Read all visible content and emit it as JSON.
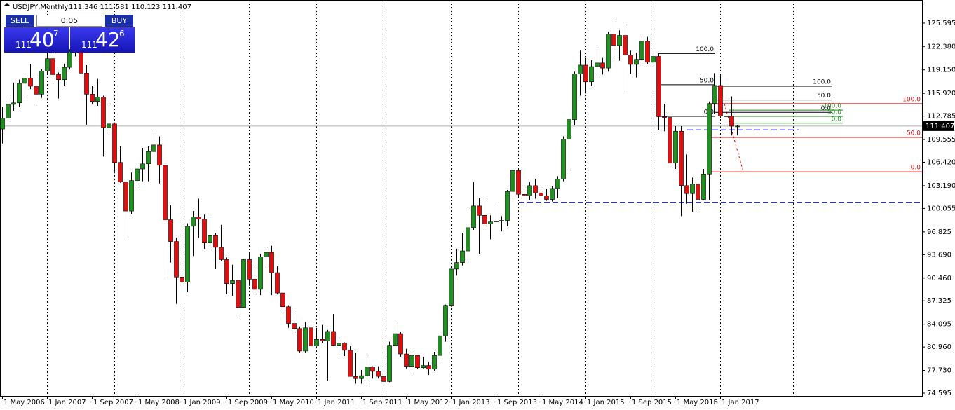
{
  "chart_data": {
    "type": "candlestick",
    "title": "USDJPY,Monthly",
    "subtitle": "111.346 111.581 110.123 111.407",
    "up_color": "#1f8f1f",
    "down_color": "#e01010",
    "ylim": [
      74.21,
      128.78
    ],
    "yticks": [
      {
        "value": 125.595,
        "label": "125.595"
      },
      {
        "value": 122.38,
        "label": "122.380"
      },
      {
        "value": 119.15,
        "label": "119.150"
      },
      {
        "value": 115.92,
        "label": "115.920"
      },
      112.785,
      109.555,
      {
        "value": 106.42,
        "label": "106.420"
      },
      {
        "value": 103.19,
        "label": "103.190"
      },
      100.055,
      96.825,
      {
        "value": 93.69,
        "label": "93.690"
      },
      {
        "value": 90.46,
        "label": "90.460"
      },
      87.325,
      84.095,
      {
        "value": 80.96,
        "label": "80.960"
      },
      {
        "value": 77.73,
        "label": "77.730"
      },
      74.595
    ],
    "current_price": 111.407,
    "categories": [
      "1 May 2006",
      null,
      null,
      null,
      null,
      null,
      null,
      null,
      "1 Jan 2007",
      null,
      null,
      null,
      null,
      null,
      null,
      null,
      "1 Sep 2007",
      null,
      null,
      null,
      null,
      null,
      null,
      null,
      "1 May 2008",
      null,
      null,
      null,
      null,
      null,
      null,
      null,
      "1 Jan 2009",
      null,
      null,
      null,
      null,
      null,
      null,
      null,
      "1 Sep 2009",
      null,
      null,
      null,
      null,
      null,
      null,
      null,
      "1 May 2010",
      null,
      null,
      null,
      null,
      null,
      null,
      null,
      "1 Jan 2011",
      null,
      null,
      null,
      null,
      null,
      null,
      null,
      "1 Sep 2011",
      null,
      null,
      null,
      null,
      null,
      null,
      null,
      "1 May 2012",
      null,
      null,
      null,
      null,
      null,
      null,
      null,
      "1 Jan 2013",
      null,
      null,
      null,
      null,
      null,
      null,
      null,
      "1 Sep 2013",
      null,
      null,
      null,
      null,
      null,
      null,
      null,
      "1 May 2014",
      null,
      null,
      null,
      null,
      null,
      null,
      null,
      "1 Jan 2015",
      null,
      null,
      null,
      null,
      null,
      null,
      null,
      "1 Sep 2015",
      null,
      null,
      null,
      null,
      null,
      null,
      null,
      "1 May 2016",
      null,
      null,
      null,
      null,
      null,
      null,
      null,
      "1 Jan 2017",
      null,
      null,
      null
    ],
    "candles": [
      [
        111.0,
        114.0,
        109.0,
        112.5
      ],
      [
        112.5,
        115.5,
        111.8,
        114.4
      ],
      [
        114.4,
        117.4,
        113.5,
        114.6
      ],
      [
        114.6,
        117.8,
        114.0,
        117.3
      ],
      [
        117.3,
        118.4,
        115.5,
        118.0
      ],
      [
        118.0,
        119.9,
        116.5,
        116.9
      ],
      [
        116.9,
        118.2,
        114.4,
        115.8
      ],
      [
        115.8,
        119.3,
        115.3,
        119.0
      ],
      [
        119.0,
        122.2,
        118.5,
        120.7
      ],
      [
        120.7,
        122.2,
        117.8,
        118.5
      ],
      [
        118.5,
        118.8,
        115.2,
        117.8
      ],
      [
        117.8,
        120.0,
        117.0,
        119.5
      ],
      [
        119.5,
        122.0,
        119.2,
        121.7
      ],
      [
        121.7,
        124.1,
        121.0,
        123.2
      ],
      [
        123.2,
        123.5,
        118.3,
        118.7
      ],
      [
        118.7,
        119.8,
        111.6,
        115.8
      ],
      [
        115.8,
        117.0,
        114.5,
        114.8
      ],
      [
        114.8,
        117.9,
        114.2,
        115.4
      ],
      [
        115.4,
        115.6,
        107.2,
        111.2
      ],
      [
        111.2,
        114.6,
        110.5,
        111.7
      ],
      [
        111.7,
        111.9,
        104.9,
        106.4
      ],
      [
        106.4,
        108.6,
        103.6,
        103.7
      ],
      [
        103.7,
        103.9,
        95.7,
        99.7
      ],
      [
        99.7,
        105.0,
        99.3,
        103.9
      ],
      [
        103.9,
        105.8,
        102.7,
        105.5
      ],
      [
        105.5,
        108.4,
        103.8,
        106.2
      ],
      [
        106.2,
        108.6,
        103.8,
        107.9
      ],
      [
        107.9,
        110.7,
        107.2,
        108.8
      ],
      [
        108.8,
        110.0,
        103.5,
        106.0
      ],
      [
        106.0,
        106.3,
        90.9,
        98.5
      ],
      [
        98.5,
        100.5,
        92.6,
        95.5
      ],
      [
        95.5,
        96.0,
        86.9,
        90.6
      ],
      [
        90.6,
        91.2,
        87.1,
        89.9
      ],
      [
        89.9,
        98.0,
        88.5,
        97.6
      ],
      [
        97.6,
        99.7,
        93.5,
        98.9
      ],
      [
        98.9,
        101.4,
        96.0,
        98.6
      ],
      [
        98.6,
        99.2,
        94.5,
        95.3
      ],
      [
        95.3,
        98.9,
        94.4,
        96.3
      ],
      [
        96.3,
        96.7,
        91.7,
        94.7
      ],
      [
        94.7,
        97.8,
        92.8,
        93.0
      ],
      [
        93.0,
        93.3,
        88.2,
        89.7
      ],
      [
        89.7,
        92.3,
        88.0,
        90.1
      ],
      [
        90.1,
        90.3,
        84.8,
        86.4
      ],
      [
        86.4,
        93.1,
        86.3,
        93.0
      ],
      [
        93.0,
        93.8,
        89.4,
        90.3
      ],
      [
        90.3,
        91.8,
        88.1,
        88.9
      ],
      [
        88.9,
        93.8,
        88.1,
        93.4
      ],
      [
        93.4,
        94.7,
        92.1,
        94.0
      ],
      [
        94.0,
        94.9,
        88.1,
        91.2
      ],
      [
        91.2,
        92.1,
        88.2,
        88.4
      ],
      [
        88.4,
        88.6,
        86.2,
        86.5
      ],
      [
        86.5,
        86.7,
        83.6,
        84.2
      ],
      [
        84.2,
        85.9,
        82.9,
        83.5
      ],
      [
        83.5,
        83.8,
        80.2,
        80.4
      ],
      [
        80.4,
        84.4,
        80.2,
        83.6
      ],
      [
        83.6,
        84.5,
        80.9,
        81.1
      ],
      [
        81.1,
        83.6,
        81.0,
        82.0
      ],
      [
        82.0,
        84.0,
        81.5,
        81.8
      ],
      [
        81.8,
        83.3,
        76.3,
        83.1
      ],
      [
        83.1,
        85.5,
        81.2,
        81.2
      ],
      [
        81.2,
        82.0,
        79.6,
        81.5
      ],
      [
        81.5,
        81.6,
        79.7,
        80.5
      ],
      [
        80.5,
        81.1,
        76.9,
        76.9
      ],
      [
        76.9,
        80.2,
        75.9,
        76.6
      ],
      [
        76.6,
        77.8,
        75.9,
        77.0
      ],
      [
        77.0,
        79.5,
        75.6,
        78.2
      ],
      [
        78.2,
        78.3,
        76.6,
        77.6
      ],
      [
        77.6,
        78.3,
        76.6,
        76.9
      ],
      [
        76.9,
        77.3,
        75.9,
        76.2
      ],
      [
        76.2,
        81.7,
        76.1,
        81.2
      ],
      [
        81.2,
        84.2,
        80.9,
        82.8
      ],
      [
        82.8,
        83.0,
        79.6,
        80.0
      ],
      [
        80.0,
        80.7,
        78.0,
        78.3
      ],
      [
        78.3,
        80.6,
        77.6,
        79.8
      ],
      [
        79.8,
        79.9,
        77.9,
        78.1
      ],
      [
        78.1,
        79.6,
        78.0,
        78.4
      ],
      [
        78.4,
        78.9,
        77.1,
        77.9
      ],
      [
        77.9,
        80.3,
        77.7,
        79.8
      ],
      [
        79.8,
        82.8,
        79.1,
        82.5
      ],
      [
        82.5,
        86.8,
        81.7,
        86.7
      ],
      [
        86.7,
        91.7,
        86.5,
        91.7
      ],
      [
        91.7,
        94.5,
        90.8,
        92.6
      ],
      [
        92.6,
        96.7,
        92.2,
        94.2
      ],
      [
        94.2,
        99.9,
        92.6,
        97.4
      ],
      [
        97.4,
        103.7,
        97.1,
        100.4
      ],
      [
        100.4,
        101.5,
        93.8,
        99.1
      ],
      [
        99.1,
        101.5,
        97.5,
        97.9
      ],
      [
        97.9,
        99.1,
        95.8,
        98.2
      ],
      [
        98.2,
        100.6,
        97.1,
        98.3
      ],
      [
        98.3,
        99.0,
        96.9,
        98.4
      ],
      [
        98.4,
        102.6,
        97.6,
        102.4
      ],
      [
        102.4,
        105.4,
        101.6,
        105.3
      ],
      [
        105.3,
        105.4,
        101.8,
        102.0
      ],
      [
        102.0,
        102.8,
        100.8,
        101.8
      ],
      [
        101.8,
        103.7,
        101.2,
        103.2
      ],
      [
        103.2,
        104.1,
        101.4,
        102.2
      ],
      [
        102.2,
        103.0,
        100.8,
        101.8
      ],
      [
        101.8,
        102.8,
        101.1,
        101.3
      ],
      [
        101.3,
        103.1,
        101.0,
        102.8
      ],
      [
        102.8,
        104.5,
        101.5,
        104.1
      ],
      [
        104.1,
        110.0,
        103.8,
        109.6
      ],
      [
        109.6,
        112.5,
        105.2,
        112.3
      ],
      [
        112.3,
        118.9,
        111.5,
        118.6
      ],
      [
        118.6,
        121.8,
        115.6,
        119.8
      ],
      [
        119.8,
        120.8,
        115.9,
        117.5
      ],
      [
        117.5,
        120.5,
        116.9,
        119.6
      ],
      [
        119.6,
        122.0,
        118.3,
        120.1
      ],
      [
        120.1,
        120.8,
        118.5,
        119.4
      ],
      [
        119.4,
        124.4,
        118.9,
        124.1
      ],
      [
        124.1,
        125.9,
        120.4,
        122.5
      ],
      [
        122.5,
        124.6,
        120.4,
        123.9
      ],
      [
        123.9,
        125.3,
        116.1,
        121.2
      ],
      [
        121.2,
        121.8,
        118.6,
        119.9
      ],
      [
        119.9,
        121.5,
        118.1,
        120.6
      ],
      [
        120.6,
        123.8,
        120.2,
        123.1
      ],
      [
        123.1,
        123.7,
        119.9,
        120.2
      ],
      [
        120.2,
        121.7,
        115.9,
        121.0
      ],
      [
        121.0,
        121.5,
        110.9,
        112.7
      ],
      [
        112.7,
        114.5,
        110.7,
        112.6
      ],
      [
        112.6,
        112.7,
        105.6,
        106.3
      ],
      [
        106.3,
        111.4,
        105.5,
        110.7
      ],
      [
        110.7,
        111.4,
        99.0,
        103.2
      ],
      [
        103.2,
        107.5,
        100.7,
        102.1
      ],
      [
        102.1,
        104.3,
        99.6,
        103.4
      ],
      [
        103.4,
        104.2,
        100.1,
        101.3
      ],
      [
        101.3,
        105.5,
        101.2,
        104.8
      ],
      [
        104.8,
        114.8,
        101.2,
        114.5
      ],
      [
        114.5,
        118.7,
        113.1,
        117.0
      ],
      [
        117.0,
        118.6,
        112.5,
        112.8
      ],
      [
        112.8,
        114.9,
        111.6,
        112.8
      ],
      [
        112.8,
        115.5,
        110.1,
        111.4
      ],
      [
        111.346,
        111.581,
        110.123,
        111.407
      ]
    ],
    "hlines": [
      {
        "price": 110.9,
        "color": "#1010e0"
      },
      {
        "price": 100.9,
        "color": "#1010e0"
      }
    ],
    "fibs": [
      {
        "color": "#000000",
        "levels": [
          {
            "label": "100.0",
            "price": 121.4
          },
          {
            "label": "50.0",
            "price": 117.1
          },
          {
            "label": "0.0",
            "price": 112.75
          }
        ]
      },
      {
        "color": "#000000",
        "levels": [
          {
            "label": "100.0",
            "price": 116.9
          },
          {
            "label": "50.0",
            "price": 115.0
          },
          {
            "label": "0.0",
            "price": 113.3
          }
        ]
      },
      {
        "color": "#1f8f1f",
        "levels": [
          {
            "label": "100.0",
            "price": 113.6
          },
          {
            "label": "50.0",
            "price": 112.75
          },
          {
            "label": "0.0",
            "price": 111.8
          }
        ]
      },
      {
        "color": "#e01010",
        "levels": [
          {
            "label": "100.0",
            "price": 114.5
          },
          {
            "label": "50.0",
            "price": 109.85
          },
          {
            "label": "0.0",
            "price": 105.1
          }
        ]
      }
    ]
  },
  "trade_panel": {
    "sell_label": "SELL",
    "buy_label": "BUY",
    "lot": "0.05",
    "sell_price": {
      "prefix": "111",
      "main": "40",
      "pip": "7"
    },
    "buy_price": {
      "prefix": "111",
      "main": "42",
      "pip": "6"
    }
  }
}
